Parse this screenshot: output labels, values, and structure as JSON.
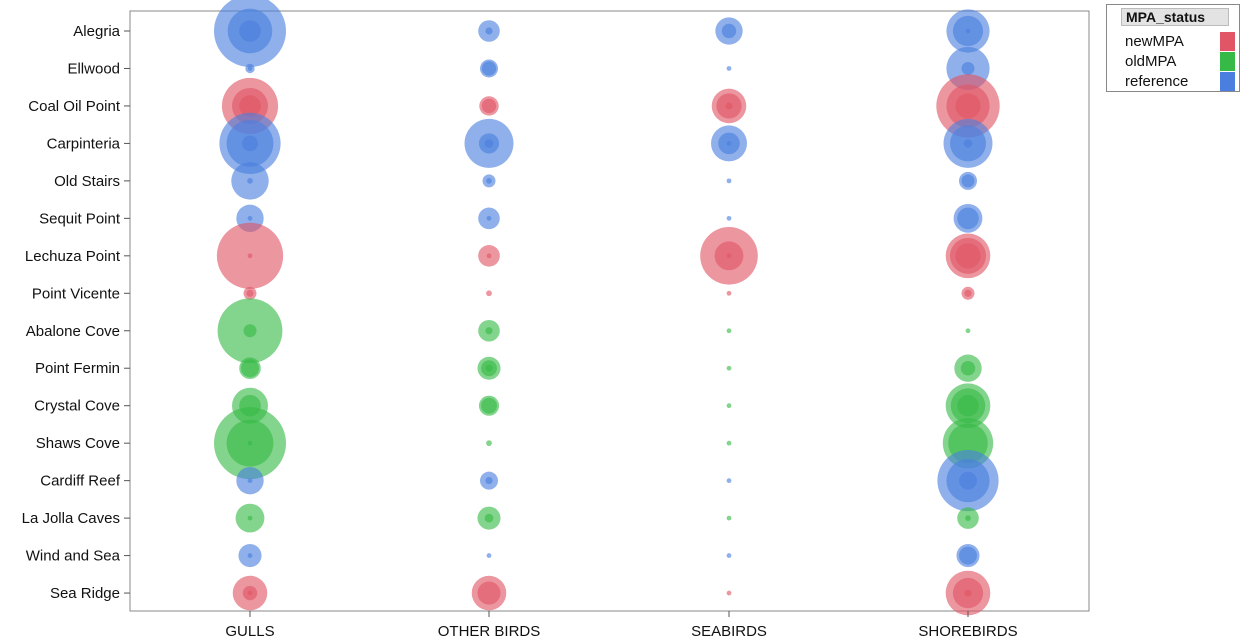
{
  "chart_data": {
    "type": "scatter",
    "x_categories": [
      "GULLS",
      "OTHER BIRDS",
      "SEABIRDS",
      "SHOREBIRDS"
    ],
    "y_categories": [
      "Alegria",
      "Ellwood",
      "Coal Oil Point",
      "Carpinteria",
      "Old Stairs",
      "Sequit Point",
      "Lechuza Point",
      "Point Vicente",
      "Abalone Cove",
      "Point Fermin",
      "Crystal Cove",
      "Shaws Cove",
      "Cardiff Reef",
      "La Jolla Caves",
      "Wind and Sea",
      "Sea Ridge"
    ],
    "site_status": [
      "reference",
      "reference",
      "newMPA",
      "reference",
      "reference",
      "reference",
      "newMPA",
      "newMPA",
      "oldMPA",
      "oldMPA",
      "oldMPA",
      "oldMPA",
      "reference",
      "oldMPA",
      "reference",
      "newMPA"
    ],
    "bubble_size_note": "relative abundance, largest outer bubble = 1",
    "points": [
      {
        "site": "Alegria",
        "group": "GULLS",
        "sizes": [
          1.0,
          0.62,
          0.3
        ]
      },
      {
        "site": "Alegria",
        "group": "OTHER BIRDS",
        "sizes": [
          0.3,
          0.1
        ]
      },
      {
        "site": "Alegria",
        "group": "SEABIRDS",
        "sizes": [
          0.38,
          0.2
        ]
      },
      {
        "site": "Alegria",
        "group": "SHOREBIRDS",
        "sizes": [
          0.6,
          0.42,
          0.06
        ]
      },
      {
        "site": "Ellwood",
        "group": "GULLS",
        "sizes": [
          0.13,
          0.06
        ]
      },
      {
        "site": "Ellwood",
        "group": "OTHER BIRDS",
        "sizes": [
          0.25,
          0.2
        ]
      },
      {
        "site": "Ellwood",
        "group": "SEABIRDS",
        "sizes": [
          0.06
        ]
      },
      {
        "site": "Ellwood",
        "group": "SHOREBIRDS",
        "sizes": [
          0.6,
          0.18
        ]
      },
      {
        "site": "Coal Oil Point",
        "group": "GULLS",
        "sizes": [
          0.78,
          0.5,
          0.3
        ]
      },
      {
        "site": "Coal Oil Point",
        "group": "OTHER BIRDS",
        "sizes": [
          0.27,
          0.2
        ]
      },
      {
        "site": "Coal Oil Point",
        "group": "SEABIRDS",
        "sizes": [
          0.48,
          0.35,
          0.1
        ]
      },
      {
        "site": "Coal Oil Point",
        "group": "SHOREBIRDS",
        "sizes": [
          0.88,
          0.6,
          0.35
        ]
      },
      {
        "site": "Carpinteria",
        "group": "GULLS",
        "sizes": [
          0.85,
          0.65,
          0.22
        ]
      },
      {
        "site": "Carpinteria",
        "group": "OTHER BIRDS",
        "sizes": [
          0.68,
          0.28,
          0.12
        ]
      },
      {
        "site": "Carpinteria",
        "group": "SEABIRDS",
        "sizes": [
          0.5,
          0.3,
          0.05
        ]
      },
      {
        "site": "Carpinteria",
        "group": "SHOREBIRDS",
        "sizes": [
          0.68,
          0.5,
          0.12
        ]
      },
      {
        "site": "Old Stairs",
        "group": "GULLS",
        "sizes": [
          0.52,
          0.08
        ]
      },
      {
        "site": "Old Stairs",
        "group": "OTHER BIRDS",
        "sizes": [
          0.18,
          0.08
        ]
      },
      {
        "site": "Old Stairs",
        "group": "SEABIRDS",
        "sizes": [
          0.06
        ]
      },
      {
        "site": "Old Stairs",
        "group": "SHOREBIRDS",
        "sizes": [
          0.25,
          0.18
        ]
      },
      {
        "site": "Sequit Point",
        "group": "GULLS",
        "sizes": [
          0.38,
          0.06
        ]
      },
      {
        "site": "Sequit Point",
        "group": "OTHER BIRDS",
        "sizes": [
          0.3,
          0.06
        ]
      },
      {
        "site": "Sequit Point",
        "group": "SEABIRDS",
        "sizes": [
          0.06
        ]
      },
      {
        "site": "Sequit Point",
        "group": "SHOREBIRDS",
        "sizes": [
          0.4,
          0.3
        ]
      },
      {
        "site": "Lechuza Point",
        "group": "GULLS",
        "sizes": [
          0.92,
          0.06
        ]
      },
      {
        "site": "Lechuza Point",
        "group": "OTHER BIRDS",
        "sizes": [
          0.3,
          0.05
        ]
      },
      {
        "site": "Lechuza Point",
        "group": "SEABIRDS",
        "sizes": [
          0.8,
          0.4,
          0.05
        ]
      },
      {
        "site": "Lechuza Point",
        "group": "SHOREBIRDS",
        "sizes": [
          0.62,
          0.5,
          0.35
        ]
      },
      {
        "site": "Point Vicente",
        "group": "GULLS",
        "sizes": [
          0.18,
          0.1
        ]
      },
      {
        "site": "Point Vicente",
        "group": "OTHER BIRDS",
        "sizes": [
          0.08
        ]
      },
      {
        "site": "Point Vicente",
        "group": "SEABIRDS",
        "sizes": [
          0.06
        ]
      },
      {
        "site": "Point Vicente",
        "group": "SHOREBIRDS",
        "sizes": [
          0.18,
          0.1
        ]
      },
      {
        "site": "Abalone Cove",
        "group": "GULLS",
        "sizes": [
          0.9,
          0.18
        ]
      },
      {
        "site": "Abalone Cove",
        "group": "OTHER BIRDS",
        "sizes": [
          0.3,
          0.1
        ]
      },
      {
        "site": "Abalone Cove",
        "group": "SEABIRDS",
        "sizes": [
          0.06
        ]
      },
      {
        "site": "Abalone Cove",
        "group": "SHOREBIRDS",
        "sizes": [
          0.06
        ]
      },
      {
        "site": "Point Fermin",
        "group": "GULLS",
        "sizes": [
          0.3,
          0.25
        ]
      },
      {
        "site": "Point Fermin",
        "group": "OTHER BIRDS",
        "sizes": [
          0.32,
          0.22,
          0.1
        ]
      },
      {
        "site": "Point Fermin",
        "group": "SEABIRDS",
        "sizes": [
          0.06
        ]
      },
      {
        "site": "Point Fermin",
        "group": "SHOREBIRDS",
        "sizes": [
          0.38,
          0.2
        ]
      },
      {
        "site": "Crystal Cove",
        "group": "GULLS",
        "sizes": [
          0.5,
          0.3
        ]
      },
      {
        "site": "Crystal Cove",
        "group": "OTHER BIRDS",
        "sizes": [
          0.28,
          0.22
        ]
      },
      {
        "site": "Crystal Cove",
        "group": "SEABIRDS",
        "sizes": [
          0.06
        ]
      },
      {
        "site": "Crystal Cove",
        "group": "SHOREBIRDS",
        "sizes": [
          0.62,
          0.48,
          0.3
        ]
      },
      {
        "site": "Shaws Cove",
        "group": "GULLS",
        "sizes": [
          1.0,
          0.65,
          0.05
        ]
      },
      {
        "site": "Shaws Cove",
        "group": "OTHER BIRDS",
        "sizes": [
          0.08
        ]
      },
      {
        "site": "Shaws Cove",
        "group": "SEABIRDS",
        "sizes": [
          0.06
        ]
      },
      {
        "site": "Shaws Cove",
        "group": "SHOREBIRDS",
        "sizes": [
          0.7,
          0.55
        ]
      },
      {
        "site": "Cardiff Reef",
        "group": "GULLS",
        "sizes": [
          0.38,
          0.06
        ]
      },
      {
        "site": "Cardiff Reef",
        "group": "OTHER BIRDS",
        "sizes": [
          0.25,
          0.1
        ]
      },
      {
        "site": "Cardiff Reef",
        "group": "SEABIRDS",
        "sizes": [
          0.06
        ]
      },
      {
        "site": "Cardiff Reef",
        "group": "SHOREBIRDS",
        "sizes": [
          0.85,
          0.6,
          0.25
        ]
      },
      {
        "site": "La Jolla Caves",
        "group": "GULLS",
        "sizes": [
          0.4,
          0.06
        ]
      },
      {
        "site": "La Jolla Caves",
        "group": "OTHER BIRDS",
        "sizes": [
          0.32,
          0.12
        ]
      },
      {
        "site": "La Jolla Caves",
        "group": "SEABIRDS",
        "sizes": [
          0.06
        ]
      },
      {
        "site": "La Jolla Caves",
        "group": "SHOREBIRDS",
        "sizes": [
          0.3,
          0.08
        ]
      },
      {
        "site": "Wind and Sea",
        "group": "GULLS",
        "sizes": [
          0.32,
          0.06
        ]
      },
      {
        "site": "Wind and Sea",
        "group": "OTHER BIRDS",
        "sizes": [
          0.06
        ]
      },
      {
        "site": "Wind and Sea",
        "group": "SEABIRDS",
        "sizes": [
          0.06
        ]
      },
      {
        "site": "Wind and Sea",
        "group": "SHOREBIRDS",
        "sizes": [
          0.32,
          0.25
        ]
      },
      {
        "site": "Sea Ridge",
        "group": "GULLS",
        "sizes": [
          0.48,
          0.2,
          0.06
        ]
      },
      {
        "site": "Sea Ridge",
        "group": "OTHER BIRDS",
        "sizes": [
          0.48,
          0.32
        ]
      },
      {
        "site": "Sea Ridge",
        "group": "SEABIRDS",
        "sizes": [
          0.06
        ]
      },
      {
        "site": "Sea Ridge",
        "group": "SHOREBIRDS",
        "sizes": [
          0.62,
          0.42,
          0.1
        ]
      }
    ],
    "legend": {
      "title": "MPA_status",
      "placement": "top-right, outside plot",
      "entries": [
        {
          "label": "newMPA",
          "color": "#e05666"
        },
        {
          "label": "oldMPA",
          "color": "#37b947"
        },
        {
          "label": "reference",
          "color": "#4a7fdf"
        }
      ]
    },
    "grid": false
  }
}
